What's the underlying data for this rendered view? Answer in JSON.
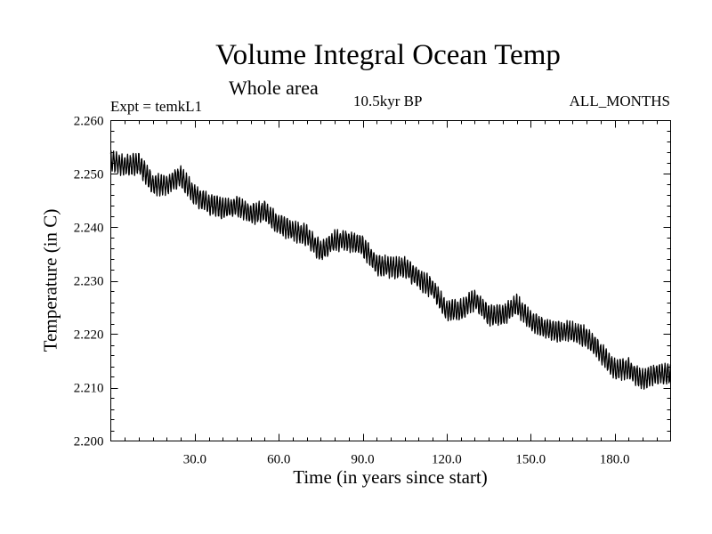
{
  "chart_data": {
    "type": "line",
    "title": "Volume Integral Ocean Temp",
    "subtitle": "Whole area",
    "experiment": "Expt = temkL1",
    "period": "10.5kyr BP",
    "months": "ALL_MONTHS",
    "xlabel": "Time (in years since start)",
    "ylabel": "Temperature (in C)",
    "xlim": [
      0,
      200
    ],
    "ylim": [
      2.2,
      2.26
    ],
    "x_ticks": [
      30,
      60,
      90,
      120,
      150,
      180
    ],
    "x_tick_labels": [
      "30.0",
      "60.0",
      "90.0",
      "120.0",
      "150.0",
      "180.0"
    ],
    "y_ticks": [
      2.2,
      2.21,
      2.22,
      2.23,
      2.24,
      2.25,
      2.26
    ],
    "y_tick_labels": [
      "2.200",
      "2.210",
      "2.220",
      "2.230",
      "2.240",
      "2.250",
      "2.260"
    ],
    "grid": false,
    "seasonal_amplitude": 0.0017,
    "series": [
      {
        "name": "Volume Integral Ocean Temp",
        "x": [
          0,
          5,
          10,
          15,
          20,
          25,
          30,
          35,
          40,
          45,
          50,
          55,
          60,
          65,
          70,
          75,
          80,
          85,
          90,
          95,
          100,
          105,
          110,
          115,
          120,
          125,
          130,
          135,
          140,
          145,
          150,
          155,
          160,
          165,
          170,
          175,
          180,
          185,
          190,
          195,
          200
        ],
        "values": [
          2.2525,
          2.2515,
          2.252,
          2.248,
          2.248,
          2.2495,
          2.246,
          2.2445,
          2.2435,
          2.244,
          2.2425,
          2.243,
          2.2405,
          2.2395,
          2.2385,
          2.2355,
          2.2375,
          2.2375,
          2.2365,
          2.233,
          2.2325,
          2.2325,
          2.2305,
          2.2285,
          2.2245,
          2.2245,
          2.2265,
          2.2235,
          2.2235,
          2.2255,
          2.2225,
          2.221,
          2.2205,
          2.2205,
          2.2195,
          2.2165,
          2.2135,
          2.2135,
          2.2115,
          2.2125,
          2.2125
        ]
      }
    ]
  }
}
